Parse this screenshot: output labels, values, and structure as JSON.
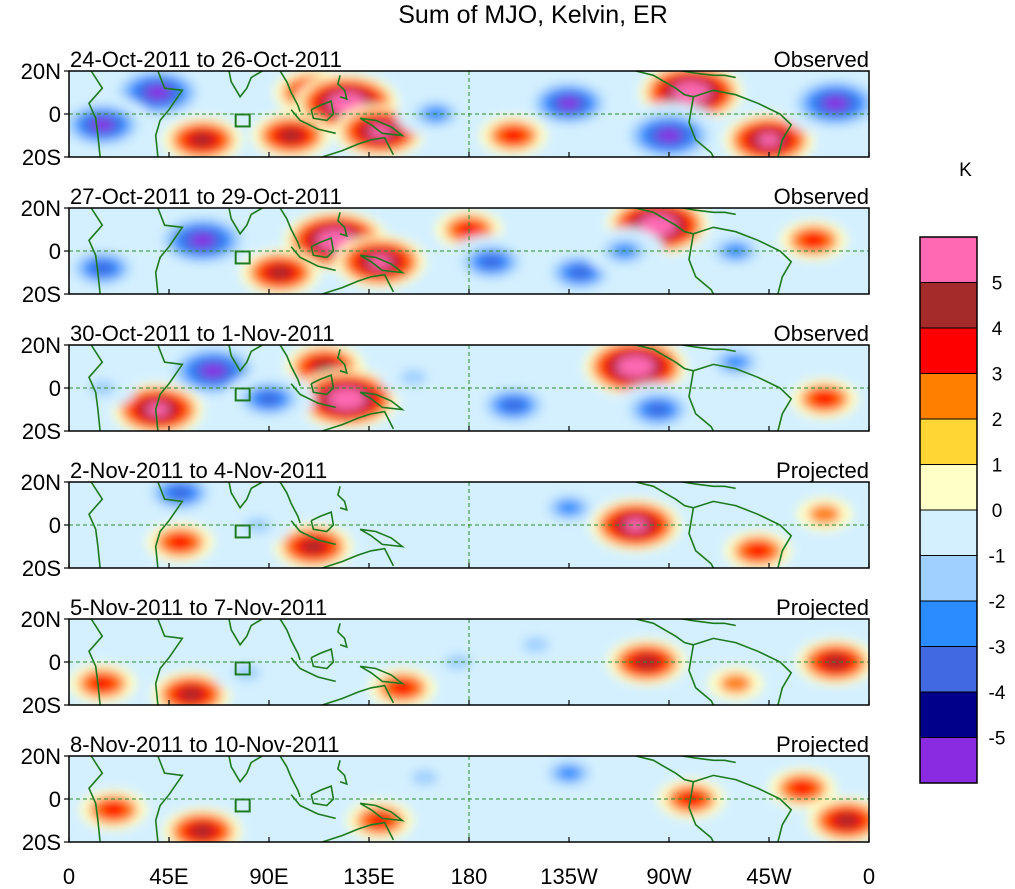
{
  "chart_data": {
    "type": "heatmap",
    "title": "Sum of MJO, Kelvin, ER",
    "units": "K",
    "x_ticks": [
      "0",
      "45E",
      "90E",
      "135E",
      "180",
      "135W",
      "90W",
      "45W",
      "0"
    ],
    "y_ticks": [
      "20N",
      "0",
      "20S"
    ],
    "lon_range": [
      0,
      360
    ],
    "lat_range": [
      -20,
      20
    ],
    "colorbar": {
      "labels": [
        "5",
        "4",
        "3",
        "2",
        "1",
        "0",
        "-1",
        "-2",
        "-3",
        "-4",
        "-5"
      ],
      "colors": [
        "#ff69b4",
        "#a52a2a",
        "#ff0000",
        "#ff7f00",
        "#ffd633",
        "#ffffc8",
        "#d4f0ff",
        "#a0d0ff",
        "#2a8cff",
        "#4169e1",
        "#00008b",
        "#8a2be2"
      ]
    },
    "panels": [
      {
        "period": "24-Oct-2011 to 26-Oct-2011",
        "status": "Observed",
        "features": [
          {
            "lon": 40,
            "lat": 10,
            "value": -6
          },
          {
            "lon": 15,
            "lat": -5,
            "value": -5
          },
          {
            "lon": 110,
            "lat": 10,
            "value": 3
          },
          {
            "lon": 125,
            "lat": 5,
            "value": 5
          },
          {
            "lon": 140,
            "lat": -8,
            "value": 4
          },
          {
            "lon": 100,
            "lat": -10,
            "value": 3
          },
          {
            "lon": 165,
            "lat": 0,
            "value": -3
          },
          {
            "lon": 225,
            "lat": 5,
            "value": -5
          },
          {
            "lon": 280,
            "lat": 10,
            "value": 5
          },
          {
            "lon": 270,
            "lat": -10,
            "value": -6
          },
          {
            "lon": 315,
            "lat": -12,
            "value": 4
          },
          {
            "lon": 345,
            "lat": 5,
            "value": -6
          },
          {
            "lon": 200,
            "lat": -10,
            "value": 2
          },
          {
            "lon": 60,
            "lat": -12,
            "value": 3
          }
        ]
      },
      {
        "period": "27-Oct-2011 to 29-Oct-2011",
        "status": "Observed",
        "features": [
          {
            "lon": 60,
            "lat": 5,
            "value": -6
          },
          {
            "lon": 15,
            "lat": -8,
            "value": -4
          },
          {
            "lon": 120,
            "lat": 5,
            "value": 5
          },
          {
            "lon": 140,
            "lat": -5,
            "value": 4
          },
          {
            "lon": 95,
            "lat": -10,
            "value": 3
          },
          {
            "lon": 180,
            "lat": 10,
            "value": 2
          },
          {
            "lon": 190,
            "lat": -5,
            "value": -4
          },
          {
            "lon": 230,
            "lat": -10,
            "value": -4
          },
          {
            "lon": 265,
            "lat": 12,
            "value": 5
          },
          {
            "lon": 300,
            "lat": 0,
            "value": -3
          },
          {
            "lon": 335,
            "lat": 5,
            "value": 2
          },
          {
            "lon": 250,
            "lat": 0,
            "value": -3
          }
        ]
      },
      {
        "period": "30-Oct-2011 to 1-Nov-2011",
        "status": "Observed",
        "features": [
          {
            "lon": 65,
            "lat": 8,
            "value": -6
          },
          {
            "lon": 40,
            "lat": -10,
            "value": 4
          },
          {
            "lon": 115,
            "lat": 10,
            "value": 3
          },
          {
            "lon": 125,
            "lat": -5,
            "value": 5
          },
          {
            "lon": 90,
            "lat": -5,
            "value": -4
          },
          {
            "lon": 155,
            "lat": 5,
            "value": -2
          },
          {
            "lon": 200,
            "lat": -8,
            "value": -4
          },
          {
            "lon": 255,
            "lat": 10,
            "value": 5
          },
          {
            "lon": 265,
            "lat": -10,
            "value": -4
          },
          {
            "lon": 300,
            "lat": 12,
            "value": -3
          },
          {
            "lon": 340,
            "lat": -5,
            "value": 2
          },
          {
            "lon": 15,
            "lat": 0,
            "value": -2
          }
        ]
      },
      {
        "period": "2-Nov-2011 to 4-Nov-2011",
        "status": "Projected",
        "features": [
          {
            "lon": 50,
            "lat": 15,
            "value": -4
          },
          {
            "lon": 50,
            "lat": -8,
            "value": 2
          },
          {
            "lon": 110,
            "lat": -10,
            "value": 3
          },
          {
            "lon": 25,
            "lat": 0,
            "value": -1
          },
          {
            "lon": 160,
            "lat": 0,
            "value": -1
          },
          {
            "lon": 225,
            "lat": 8,
            "value": -3
          },
          {
            "lon": 255,
            "lat": 0,
            "value": 4
          },
          {
            "lon": 310,
            "lat": -12,
            "value": 2
          },
          {
            "lon": 340,
            "lat": 5,
            "value": 1
          },
          {
            "lon": 85,
            "lat": 0,
            "value": -2
          }
        ]
      },
      {
        "period": "5-Nov-2011 to 7-Nov-2011",
        "status": "Projected",
        "features": [
          {
            "lon": 55,
            "lat": -15,
            "value": 3
          },
          {
            "lon": 15,
            "lat": -10,
            "value": 2
          },
          {
            "lon": 80,
            "lat": -5,
            "value": -2
          },
          {
            "lon": 130,
            "lat": 10,
            "value": -1
          },
          {
            "lon": 175,
            "lat": 0,
            "value": -2
          },
          {
            "lon": 210,
            "lat": 8,
            "value": -2
          },
          {
            "lon": 260,
            "lat": 0,
            "value": 3
          },
          {
            "lon": 300,
            "lat": -10,
            "value": 1
          },
          {
            "lon": 345,
            "lat": 0,
            "value": 3
          },
          {
            "lon": 150,
            "lat": -12,
            "value": 2
          }
        ]
      },
      {
        "period": "8-Nov-2011 to 10-Nov-2011",
        "status": "Projected",
        "features": [
          {
            "lon": 60,
            "lat": -15,
            "value": 3
          },
          {
            "lon": 20,
            "lat": -5,
            "value": 2
          },
          {
            "lon": 100,
            "lat": 5,
            "value": -1
          },
          {
            "lon": 140,
            "lat": -10,
            "value": 2
          },
          {
            "lon": 200,
            "lat": -5,
            "value": -1
          },
          {
            "lon": 225,
            "lat": 12,
            "value": -3
          },
          {
            "lon": 280,
            "lat": 0,
            "value": 2
          },
          {
            "lon": 330,
            "lat": 5,
            "value": 2
          },
          {
            "lon": 350,
            "lat": -10,
            "value": 3
          },
          {
            "lon": 160,
            "lat": 10,
            "value": -2
          }
        ]
      }
    ]
  }
}
